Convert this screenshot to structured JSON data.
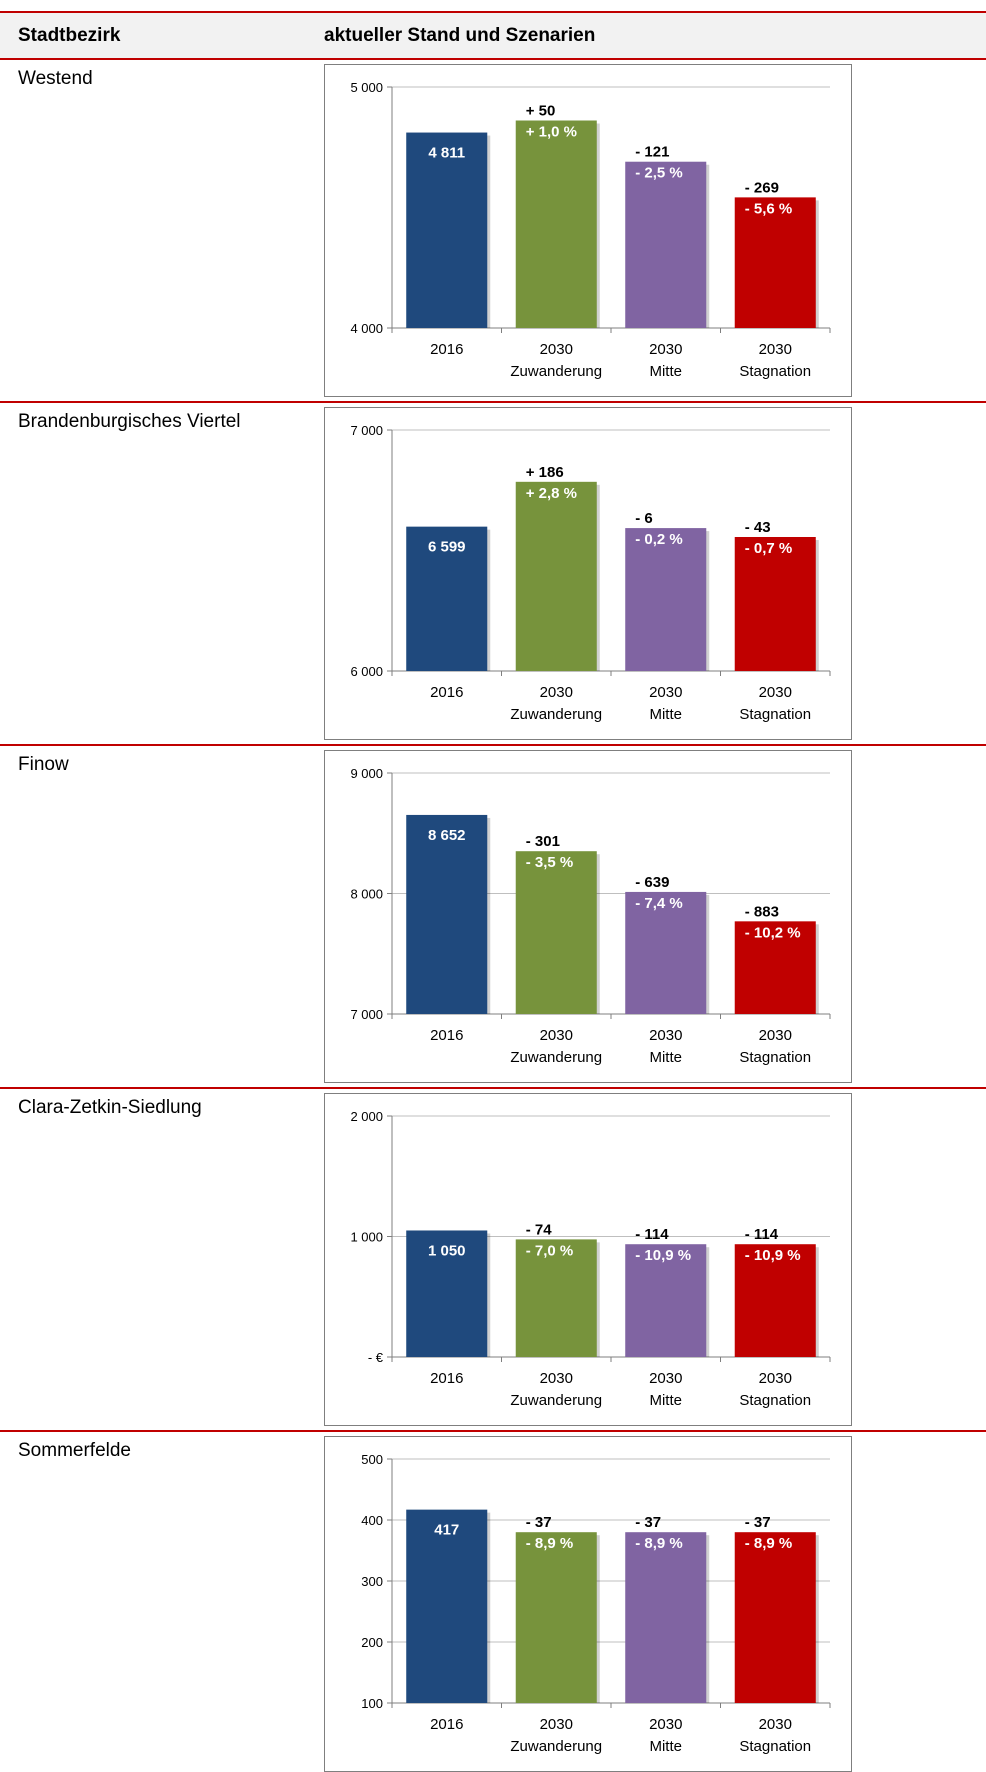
{
  "table": {
    "col1_header": "Stadtbezirk",
    "col2_header": "aktueller Stand und Szenarien"
  },
  "colors": {
    "accent_line": "#c00000",
    "bar_2016": "#1f497d",
    "bar_zuwanderung": "#77933c",
    "bar_mitte": "#8064a2",
    "bar_stagnation": "#c00000"
  },
  "rows": [
    {
      "name": "Westend"
    },
    {
      "name": "Brandenburgisches Viertel"
    },
    {
      "name": "Finow"
    },
    {
      "name": "Clara-Zetkin-Siedlung"
    },
    {
      "name": "Sommerfelde"
    }
  ],
  "chart_data": [
    {
      "type": "bar",
      "categories": [
        [
          "2016"
        ],
        [
          "2030",
          "Zuwanderung"
        ],
        [
          "2030",
          "Mitte"
        ],
        [
          "2030",
          "Stagnation"
        ]
      ],
      "values": [
        4811,
        4861,
        4690,
        4542
      ],
      "ylim": [
        4000,
        5000
      ],
      "yticks": [
        4000,
        5000
      ],
      "yticklabels": [
        "4 000",
        "5 000"
      ],
      "grid": true,
      "data_labels": [
        {
          "inside": "4 811"
        },
        {
          "abs": "+ 50",
          "pct": "+ 1,0 %"
        },
        {
          "abs": "- 121",
          "pct": "- 2,5 %"
        },
        {
          "abs": "- 269",
          "pct": "- 5,6 %"
        }
      ]
    },
    {
      "type": "bar",
      "categories": [
        [
          "2016"
        ],
        [
          "2030",
          "Zuwanderung"
        ],
        [
          "2030",
          "Mitte"
        ],
        [
          "2030",
          "Stagnation"
        ]
      ],
      "values": [
        6599,
        6785,
        6593,
        6556
      ],
      "ylim": [
        6000,
        7000
      ],
      "yticks": [
        6000,
        7000
      ],
      "yticklabels": [
        "6 000",
        "7 000"
      ],
      "grid": true,
      "data_labels": [
        {
          "inside": "6 599"
        },
        {
          "abs": "+ 186",
          "pct": "+ 2,8 %"
        },
        {
          "abs": "- 6",
          "pct": "- 0,2 %"
        },
        {
          "abs": "- 43",
          "pct": "- 0,7 %"
        }
      ]
    },
    {
      "type": "bar",
      "categories": [
        [
          "2016"
        ],
        [
          "2030",
          "Zuwanderung"
        ],
        [
          "2030",
          "Mitte"
        ],
        [
          "2030",
          "Stagnation"
        ]
      ],
      "values": [
        8652,
        8351,
        8013,
        7769
      ],
      "ylim": [
        7000,
        9000
      ],
      "yticks": [
        7000,
        8000,
        9000
      ],
      "yticklabels": [
        "7 000",
        "8 000",
        "9 000"
      ],
      "grid": true,
      "data_labels": [
        {
          "inside": "8 652"
        },
        {
          "abs": "- 301",
          "pct": "- 3,5 %"
        },
        {
          "abs": "- 639",
          "pct": "- 7,4 %"
        },
        {
          "abs": "- 883",
          "pct": "- 10,2 %"
        }
      ]
    },
    {
      "type": "bar",
      "categories": [
        [
          "2016"
        ],
        [
          "2030",
          "Zuwanderung"
        ],
        [
          "2030",
          "Mitte"
        ],
        [
          "2030",
          "Stagnation"
        ]
      ],
      "values": [
        1050,
        976,
        936,
        936
      ],
      "ylim": [
        0,
        2000
      ],
      "yticks": [
        0,
        1000,
        2000
      ],
      "yticklabels": [
        "-  €",
        "1 000",
        "2 000"
      ],
      "grid": true,
      "data_labels": [
        {
          "inside": "1 050"
        },
        {
          "abs": "- 74",
          "pct": "- 7,0 %"
        },
        {
          "abs": "- 114",
          "pct": "- 10,9 %"
        },
        {
          "abs": "- 114",
          "pct": "- 10,9 %"
        }
      ]
    },
    {
      "type": "bar",
      "categories": [
        [
          "2016"
        ],
        [
          "2030",
          "Zuwanderung"
        ],
        [
          "2030",
          "Mitte"
        ],
        [
          "2030",
          "Stagnation"
        ]
      ],
      "values": [
        417,
        380,
        380,
        380
      ],
      "ylim": [
        100,
        500
      ],
      "yticks": [
        100,
        200,
        300,
        400,
        500
      ],
      "yticklabels": [
        "100",
        "200",
        "300",
        "400",
        "500"
      ],
      "grid": true,
      "data_labels": [
        {
          "inside": "417"
        },
        {
          "abs": "- 37",
          "pct": "- 8,9 %"
        },
        {
          "abs": "- 37",
          "pct": "- 8,9 %"
        },
        {
          "abs": "- 37",
          "pct": "- 8,9 %"
        }
      ]
    }
  ]
}
